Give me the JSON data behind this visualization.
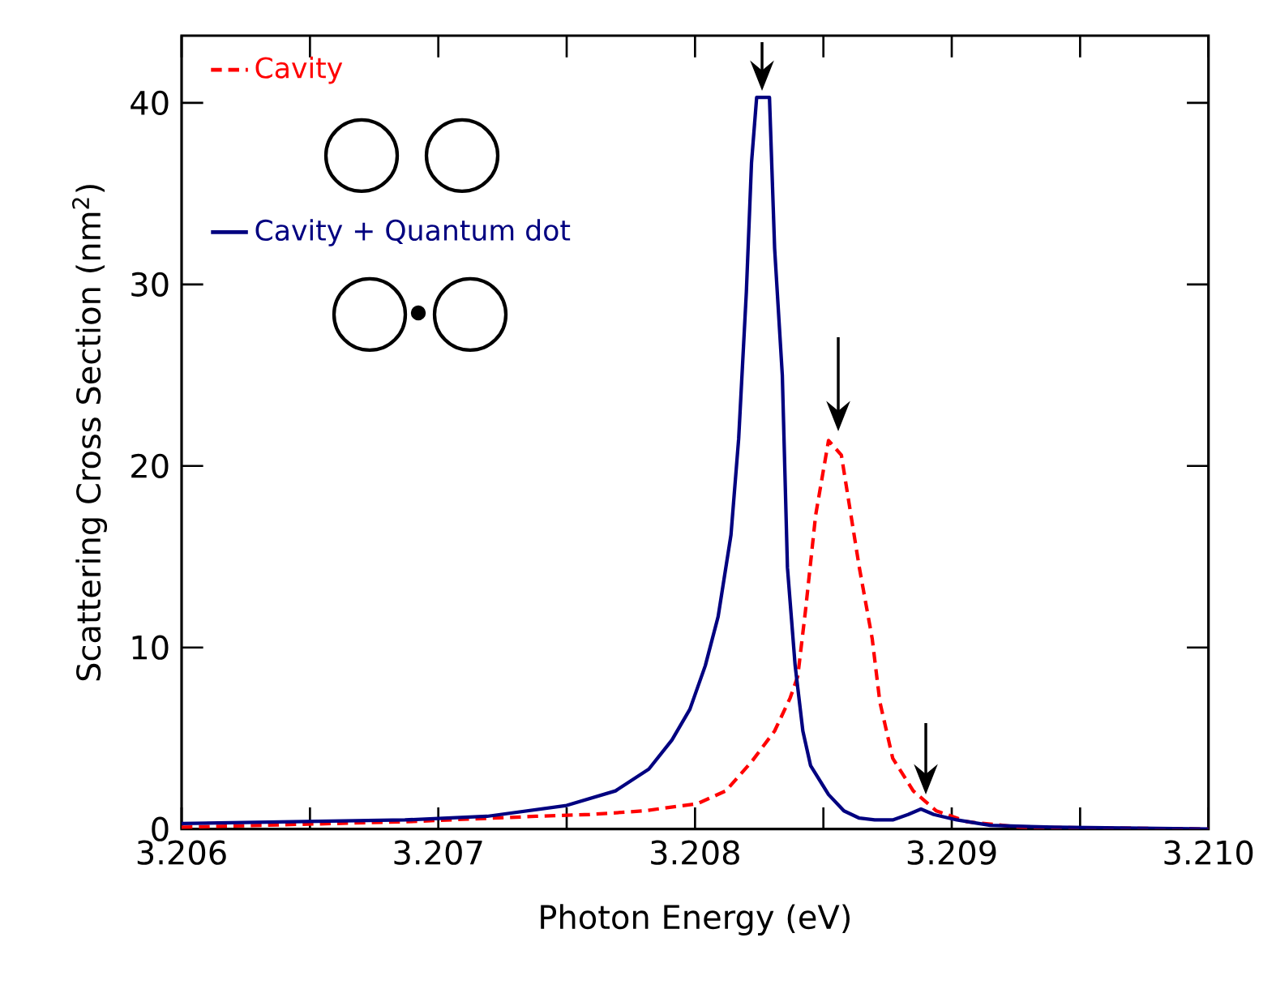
{
  "chart_data": {
    "type": "line",
    "xlabel": "Photon Energy (eV)",
    "ylabel": "Scattering Cross Section (nm$^{2}$)",
    "xlim": [
      3.206,
      3.21
    ],
    "ylim": [
      0,
      43.7
    ],
    "xticks": [
      3.206,
      {
        "value": 3.2065,
        "label": null
      },
      3.207,
      {
        "value": 3.2075,
        "label": null
      },
      3.208,
      {
        "value": 3.2085,
        "label": null
      },
      3.209,
      {
        "value": 3.2095,
        "label": null
      },
      {
        "value": 3.21,
        "label": "3.210"
      }
    ],
    "yticks": [
      0,
      10,
      20,
      30,
      40
    ],
    "grid": false,
    "legend": "top left",
    "marker": "none",
    "series": [
      {
        "name": "Cavity",
        "color": "#ff0000",
        "line_style": "dashed",
        "x": [
          3.206,
          3.20687,
          3.20738,
          3.20759,
          3.2078,
          3.20801,
          3.20812,
          3.20822,
          3.20831,
          3.20837,
          3.2084,
          3.20843,
          3.20847,
          3.20852,
          3.20857,
          3.20864,
          3.20869,
          3.20872,
          3.20877,
          3.20885,
          3.20894,
          3.20906,
          3.20927,
          3.21
        ],
        "values": [
          0.1,
          0.4,
          0.7,
          0.8,
          1.0,
          1.4,
          2.1,
          3.7,
          5.4,
          7.2,
          8.4,
          12.0,
          17.3,
          21.4,
          20.6,
          14.4,
          10.5,
          7.0,
          3.9,
          2.1,
          1.0,
          0.4,
          0.1,
          0.0
        ]
      },
      {
        "name": "Cavity + Quantum dot",
        "color": "#000080",
        "line_style": "solid",
        "x": [
          3.206,
          3.20687,
          3.20719,
          3.2075,
          3.20769,
          3.20782,
          3.20791,
          3.20798,
          3.20804,
          3.20809,
          3.20814,
          3.20817,
          3.2082,
          3.20822,
          3.20824,
          3.20829,
          3.20831,
          3.20834,
          3.20836,
          3.20839,
          3.20842,
          3.20845,
          3.20852,
          3.20858,
          3.20864,
          3.2087,
          3.20877,
          3.20883,
          3.20888,
          3.20893,
          3.20902,
          3.20915,
          3.2094,
          3.21
        ],
        "values": [
          0.3,
          0.5,
          0.7,
          1.3,
          2.1,
          3.3,
          4.9,
          6.6,
          9.0,
          11.7,
          16.2,
          21.5,
          29.6,
          36.7,
          40.3,
          40.3,
          32,
          25,
          14.4,
          9.0,
          5.4,
          3.5,
          1.9,
          1.0,
          0.6,
          0.5,
          0.5,
          0.8,
          1.1,
          0.8,
          0.5,
          0.2,
          0.1,
          0.0
        ]
      }
    ]
  }
}
